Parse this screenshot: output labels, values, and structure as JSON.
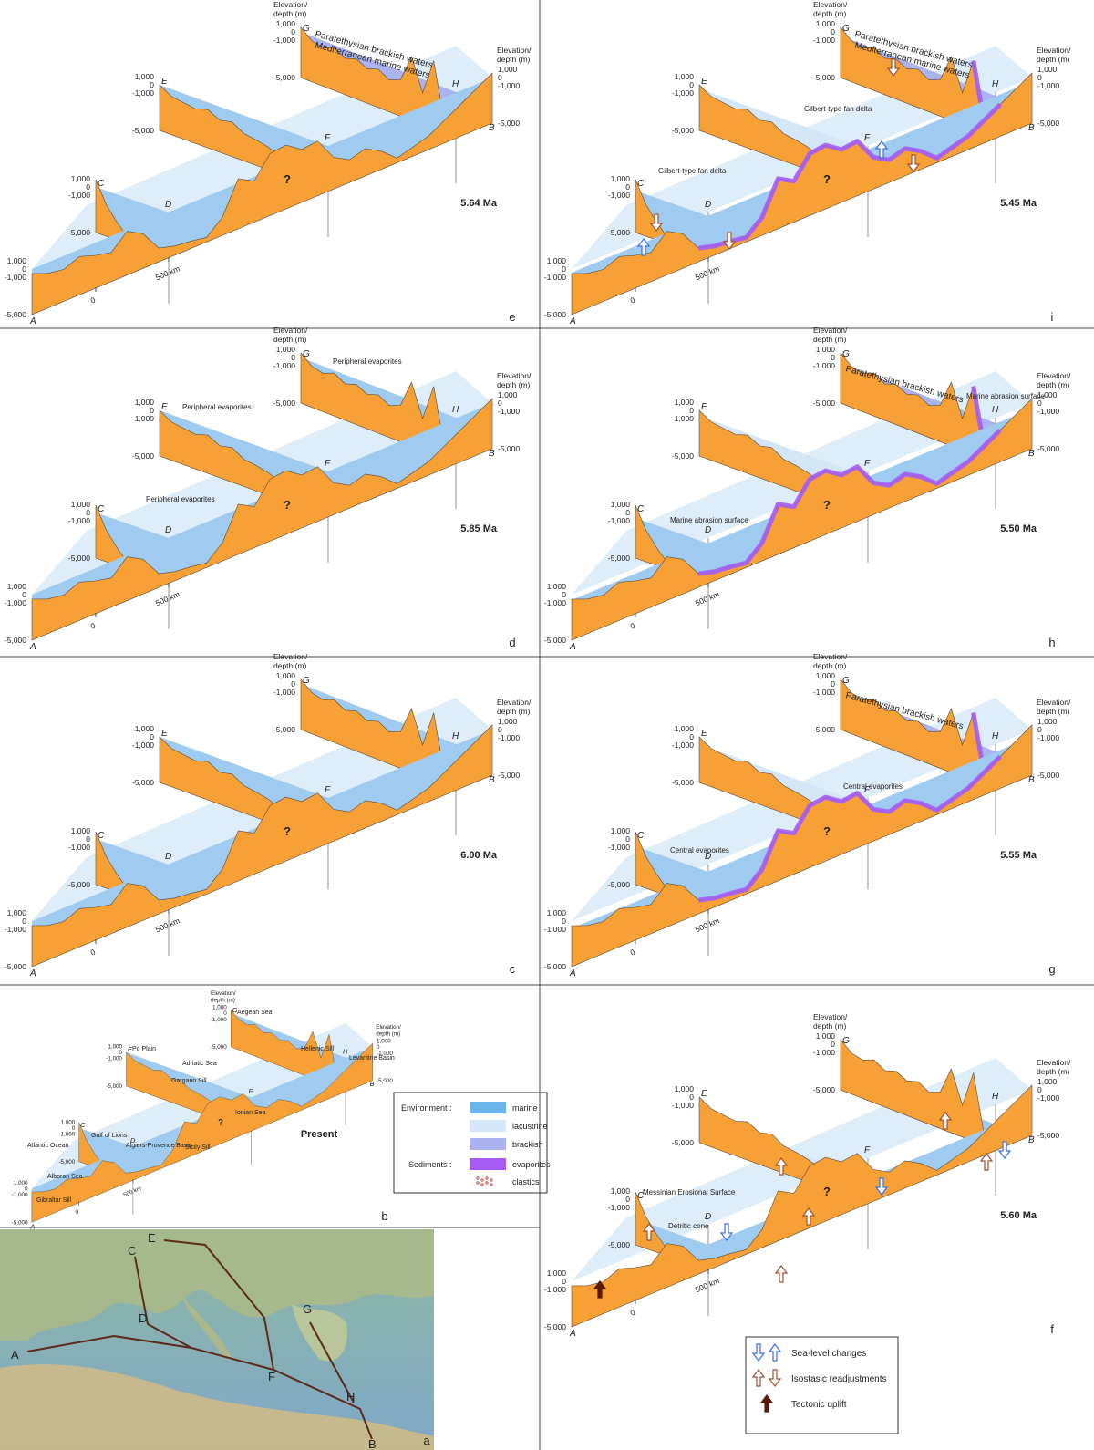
{
  "axis": {
    "title": [
      "Elevation/",
      "depth (m)"
    ],
    "ticks": [
      "1,000",
      "0",
      "-1,000",
      "-5,000"
    ],
    "scale": [
      "0",
      "500 km"
    ]
  },
  "points": [
    "A",
    "B",
    "C",
    "D",
    "E",
    "F",
    "G",
    "H"
  ],
  "unknown": "?",
  "panels": [
    {
      "letter": "e",
      "age": "5.64 Ma",
      "annotations": [
        "Paratethysian brackish waters",
        "Mediterranean marine waters"
      ]
    },
    {
      "letter": "i",
      "age": "5.45 Ma",
      "annotations": [
        "Paratethysian brackish waters",
        "Mediterranean marine waters",
        "Gilbert-type fan delta",
        "Gilbert-type fan delta"
      ]
    },
    {
      "letter": "d",
      "age": "5.85 Ma",
      "annotations": [
        "Peripheral evaporites",
        "Peripheral evaporites",
        "Peripheral evaporites"
      ]
    },
    {
      "letter": "h",
      "age": "5.50 Ma",
      "annotations": [
        "Paratethysian brackish waters",
        "Marine abrasion surface",
        "Marine abrasion surface"
      ]
    },
    {
      "letter": "c",
      "age": "6.00 Ma",
      "annotations": []
    },
    {
      "letter": "g",
      "age": "5.55 Ma",
      "annotations": [
        "Paratethysian brackish waters",
        "Central evaporites",
        "Central evaporites"
      ]
    },
    {
      "letter": "f",
      "age": "5.60 Ma",
      "annotations": [
        "Messinian Erosional Surface",
        "Detritic cone"
      ]
    }
  ],
  "present": {
    "letter": "b",
    "age": "Present",
    "labels": [
      "Aegean Sea",
      "Hellenic Sill",
      "Levantine Basin",
      "Po Plain",
      "Adriatic Sea",
      "Gargano Sill",
      "Ionian Sea",
      "Gulf of Lions",
      "Algiers-Provence Basin",
      "Sicily Sill",
      "Atlantic Ocean",
      "Alboran Sea",
      "Gibraltar Sill"
    ]
  },
  "legend": {
    "environment": {
      "title": "Environment :",
      "items": [
        "marine",
        "lacustrine",
        "brackish"
      ]
    },
    "sediments": {
      "title": "Sediments :",
      "items": [
        "evaporites",
        "clastics"
      ]
    }
  },
  "arrow_legend": [
    "Sea-level changes",
    "Isostasic readjustments",
    "Tectonic uplift"
  ],
  "map": {
    "letter": "a"
  }
}
